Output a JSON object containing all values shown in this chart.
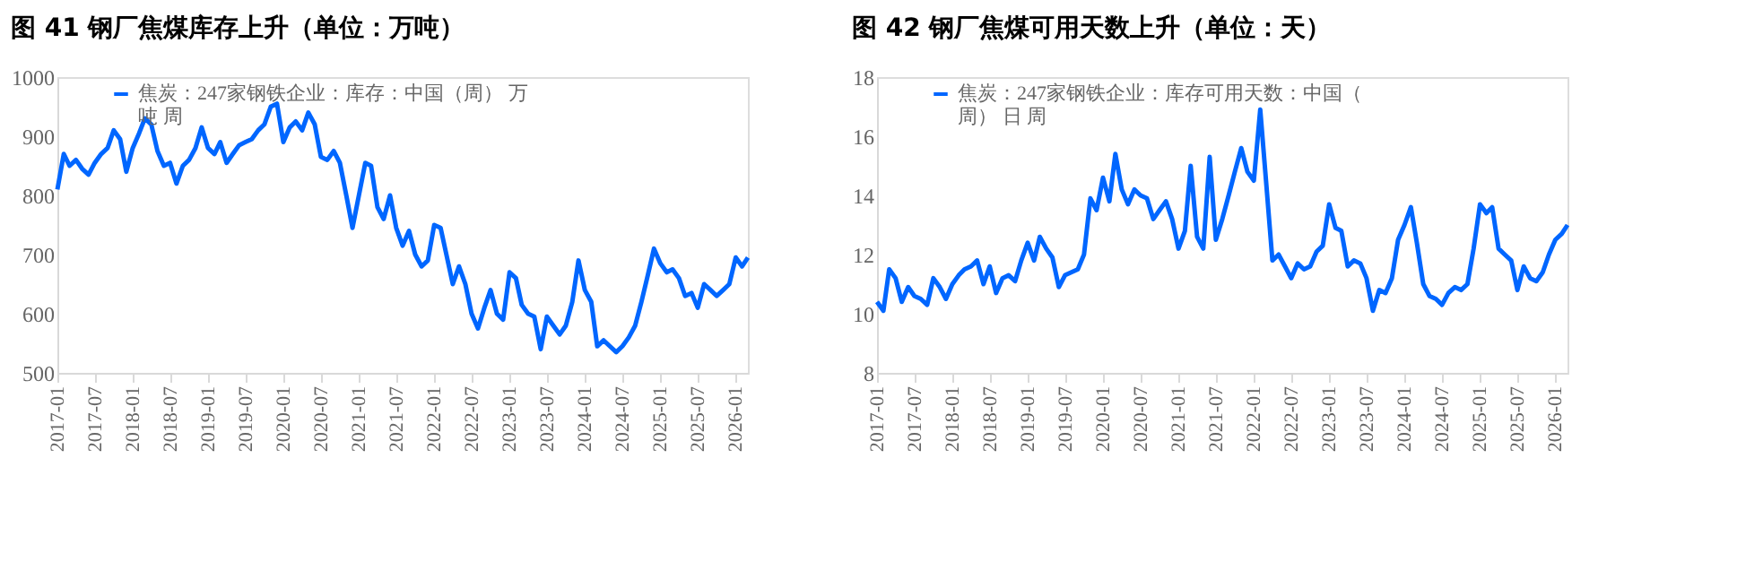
{
  "chart_data": [
    {
      "type": "line",
      "title": "图 41 钢厂焦煤库存上升（单位：万吨）",
      "legend": "top",
      "grid": false,
      "marker": "none",
      "line_style": "solid",
      "ylim": [
        500,
        1000
      ],
      "yticks": [
        500,
        600,
        700,
        800,
        900,
        1000
      ],
      "xlim": [
        "2017-01",
        "2026-03"
      ],
      "xticks": [
        "2017-01",
        "2017-07",
        "2018-01",
        "2018-07",
        "2019-01",
        "2019-07",
        "2020-01",
        "2020-07",
        "2021-01",
        "2021-07",
        "2022-01",
        "2022-07",
        "2023-01",
        "2023-07",
        "2024-01",
        "2024-07",
        "2025-01",
        "2025-07",
        "2026-01"
      ],
      "x": [
        "2017-01",
        "2017-02",
        "2017-03",
        "2017-04",
        "2017-05",
        "2017-06",
        "2017-07",
        "2017-08",
        "2017-09",
        "2017-10",
        "2017-11",
        "2017-12",
        "2018-01",
        "2018-02",
        "2018-03",
        "2018-04",
        "2018-05",
        "2018-06",
        "2018-07",
        "2018-08",
        "2018-09",
        "2018-10",
        "2018-11",
        "2018-12",
        "2019-01",
        "2019-02",
        "2019-03",
        "2019-04",
        "2019-05",
        "2019-06",
        "2019-07",
        "2019-08",
        "2019-09",
        "2019-10",
        "2019-11",
        "2019-12",
        "2020-01",
        "2020-02",
        "2020-03",
        "2020-04",
        "2020-05",
        "2020-06",
        "2020-07",
        "2020-08",
        "2020-09",
        "2020-10",
        "2020-11",
        "2020-12",
        "2021-01",
        "2021-02",
        "2021-03",
        "2021-04",
        "2021-05",
        "2021-06",
        "2021-07",
        "2021-08",
        "2021-09",
        "2021-10",
        "2021-11",
        "2021-12",
        "2022-01",
        "2022-02",
        "2022-03",
        "2022-04",
        "2022-05",
        "2022-06",
        "2022-07",
        "2022-08",
        "2022-09",
        "2022-10",
        "2022-11",
        "2022-12",
        "2023-01",
        "2023-02",
        "2023-03",
        "2023-04",
        "2023-05",
        "2023-06",
        "2023-07",
        "2023-08",
        "2023-09",
        "2023-10",
        "2023-11",
        "2023-12",
        "2024-01",
        "2024-02",
        "2024-03",
        "2024-04",
        "2024-05",
        "2024-06",
        "2024-07",
        "2024-08",
        "2024-09",
        "2024-10",
        "2024-11",
        "2024-12",
        "2025-01",
        "2025-02",
        "2025-03",
        "2025-04",
        "2025-05",
        "2025-06",
        "2025-07",
        "2025-08",
        "2025-09",
        "2025-10",
        "2025-11",
        "2025-12",
        "2026-01",
        "2026-02",
        "2026-03"
      ],
      "series": [
        {
          "name": "焦炭：247家钢铁企业：库存：中国（周） 万吨 周",
          "color": "#0066ff",
          "values": [
            810,
            870,
            850,
            860,
            845,
            835,
            855,
            870,
            880,
            910,
            895,
            840,
            880,
            905,
            930,
            920,
            875,
            850,
            855,
            820,
            850,
            860,
            880,
            915,
            880,
            870,
            890,
            855,
            870,
            885,
            890,
            895,
            910,
            920,
            950,
            955,
            890,
            915,
            925,
            910,
            940,
            920,
            865,
            860,
            875,
            855,
            800,
            745,
            800,
            855,
            850,
            780,
            760,
            800,
            745,
            715,
            740,
            700,
            680,
            690,
            750,
            745,
            700,
            650,
            680,
            650,
            600,
            575,
            610,
            640,
            600,
            590,
            670,
            660,
            615,
            600,
            595,
            540,
            595,
            580,
            565,
            580,
            620,
            690,
            640,
            620,
            545,
            555,
            545,
            535,
            545,
            560,
            580,
            620,
            665,
            710,
            685,
            670,
            675,
            660,
            630,
            635,
            610,
            650,
            640,
            630,
            640,
            650,
            695,
            680,
            695
          ]
        }
      ]
    },
    {
      "type": "line",
      "title": "图 42 钢厂焦煤可用天数上升（单位：天）",
      "legend": "top",
      "grid": false,
      "marker": "none",
      "line_style": "solid",
      "ylim": [
        8,
        18
      ],
      "yticks": [
        8,
        10,
        12,
        14,
        16,
        18
      ],
      "xlim": [
        "2017-01",
        "2026-03"
      ],
      "xticks": [
        "2017-01",
        "2017-07",
        "2018-01",
        "2018-07",
        "2019-01",
        "2019-07",
        "2020-01",
        "2020-07",
        "2021-01",
        "2021-07",
        "2022-01",
        "2022-07",
        "2023-01",
        "2023-07",
        "2024-01",
        "2024-07",
        "2025-01",
        "2025-07",
        "2026-01"
      ],
      "x": [
        "2017-01",
        "2017-02",
        "2017-03",
        "2017-04",
        "2017-05",
        "2017-06",
        "2017-07",
        "2017-08",
        "2017-09",
        "2017-10",
        "2017-11",
        "2017-12",
        "2018-01",
        "2018-02",
        "2018-03",
        "2018-04",
        "2018-05",
        "2018-06",
        "2018-07",
        "2018-08",
        "2018-09",
        "2018-10",
        "2018-11",
        "2018-12",
        "2019-01",
        "2019-02",
        "2019-03",
        "2019-04",
        "2019-05",
        "2019-06",
        "2019-07",
        "2019-08",
        "2019-09",
        "2019-10",
        "2019-11",
        "2019-12",
        "2020-01",
        "2020-02",
        "2020-03",
        "2020-04",
        "2020-05",
        "2020-06",
        "2020-07",
        "2020-08",
        "2020-09",
        "2020-10",
        "2020-11",
        "2020-12",
        "2021-01",
        "2021-02",
        "2021-03",
        "2021-04",
        "2021-05",
        "2021-06",
        "2021-07",
        "2021-08",
        "2021-09",
        "2021-10",
        "2021-11",
        "2021-12",
        "2022-01",
        "2022-02",
        "2022-03",
        "2022-04",
        "2022-05",
        "2022-06",
        "2022-07",
        "2022-08",
        "2022-09",
        "2022-10",
        "2022-11",
        "2022-12",
        "2023-01",
        "2023-02",
        "2023-03",
        "2023-04",
        "2023-05",
        "2023-06",
        "2023-07",
        "2023-08",
        "2023-09",
        "2023-10",
        "2023-11",
        "2023-12",
        "2024-01",
        "2024-02",
        "2024-03",
        "2024-04",
        "2024-05",
        "2024-06",
        "2024-07",
        "2024-08",
        "2024-09",
        "2024-10",
        "2024-11",
        "2024-12",
        "2025-01",
        "2025-02",
        "2025-03",
        "2025-04",
        "2025-05",
        "2025-06",
        "2025-07",
        "2025-08",
        "2025-09",
        "2025-10",
        "2025-11",
        "2025-12",
        "2026-01",
        "2026-02",
        "2026-03"
      ],
      "series": [
        {
          "name": "焦炭：247家钢铁企业：库存可用天数：中国（周） 日 周",
          "color": "#0066ff",
          "values": [
            10.4,
            10.1,
            11.5,
            11.2,
            10.4,
            10.9,
            10.6,
            10.5,
            10.3,
            11.2,
            10.9,
            10.5,
            11.0,
            11.3,
            11.5,
            11.6,
            11.8,
            11.0,
            11.6,
            10.7,
            11.2,
            11.3,
            11.1,
            11.8,
            12.4,
            11.8,
            12.6,
            12.2,
            11.9,
            10.9,
            11.3,
            11.4,
            11.5,
            12.0,
            13.9,
            13.5,
            14.6,
            13.8,
            15.4,
            14.2,
            13.7,
            14.2,
            14.0,
            13.9,
            13.2,
            13.5,
            13.8,
            13.2,
            12.2,
            12.8,
            15.0,
            12.6,
            12.2,
            15.3,
            12.5,
            13.2,
            14.0,
            14.8,
            15.6,
            14.8,
            14.5,
            16.9,
            14.5,
            11.8,
            12.0,
            11.6,
            11.2,
            11.7,
            11.5,
            11.6,
            12.1,
            12.3,
            13.7,
            12.9,
            12.8,
            11.6,
            11.8,
            11.7,
            11.2,
            10.1,
            10.8,
            10.7,
            11.2,
            12.5,
            13.0,
            13.6,
            12.4,
            11.0,
            10.6,
            10.5,
            10.3,
            10.7,
            10.9,
            10.8,
            11.0,
            12.2,
            13.7,
            13.4,
            13.6,
            12.2,
            12.0,
            11.8,
            10.8,
            11.6,
            11.2,
            11.1,
            11.4,
            12.0,
            12.5,
            12.7,
            13.0
          ]
        }
      ]
    }
  ]
}
